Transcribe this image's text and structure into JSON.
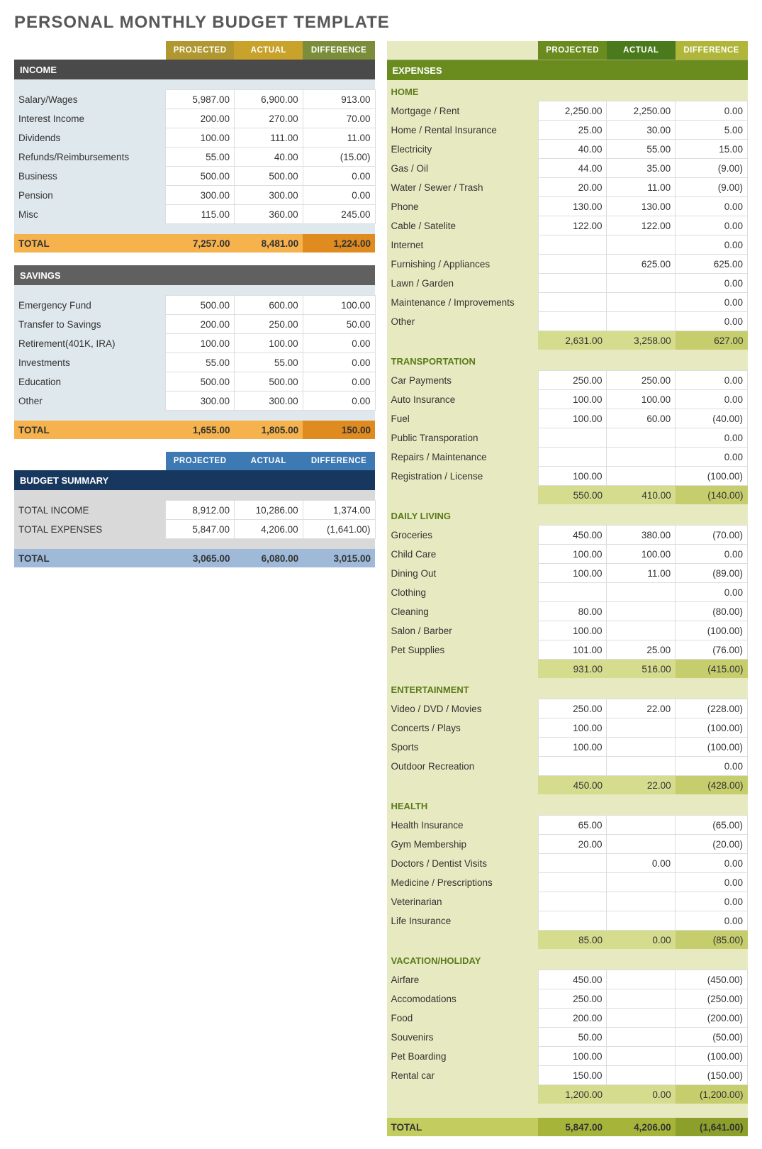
{
  "title": "PERSONAL MONTHLY BUDGET TEMPLATE",
  "cols": {
    "projected": "PROJECTED",
    "actual": "ACTUAL",
    "difference": "DIFFERENCE"
  },
  "colors": {
    "income_hdr_proj": "#b1972f",
    "income_hdr_act": "#c8a22a",
    "income_hdr_diff": "#7b8d3a",
    "income_sect": "#4a4a4a",
    "income_body": "#dfe8ec",
    "income_total_proj": "#f6b24c",
    "income_total_diff": "#e08b1f",
    "savings_sect": "#606060",
    "summary_hdr": "#3d79b3",
    "summary_sect": "#17375e",
    "summary_body": "#d9d9d9",
    "summary_total": "#9fb9d8",
    "exp_hdr_proj": "#6a8c1f",
    "exp_hdr_act": "#4b7a1d",
    "exp_hdr_diff": "#b0b63a",
    "exp_body": "#e7eac1",
    "exp_cat_text": "#5a7a1a",
    "exp_sub_proj": "#d6dc8e",
    "exp_sub_diff": "#c5cd6c",
    "exp_total_label": "#c3cc5f",
    "exp_total_proj": "#a6b53a",
    "exp_total_diff": "#8b9f2a",
    "border": "#9aa77a"
  },
  "income": {
    "label": "INCOME",
    "rows": [
      {
        "l": "Salary/Wages",
        "p": "5,987.00",
        "a": "6,900.00",
        "d": "913.00"
      },
      {
        "l": "Interest Income",
        "p": "200.00",
        "a": "270.00",
        "d": "70.00"
      },
      {
        "l": "Dividends",
        "p": "100.00",
        "a": "111.00",
        "d": "11.00"
      },
      {
        "l": "Refunds/Reimbursements",
        "p": "55.00",
        "a": "40.00",
        "d": "(15.00)"
      },
      {
        "l": "Business",
        "p": "500.00",
        "a": "500.00",
        "d": "0.00"
      },
      {
        "l": "Pension",
        "p": "300.00",
        "a": "300.00",
        "d": "0.00"
      },
      {
        "l": "Misc",
        "p": "115.00",
        "a": "360.00",
        "d": "245.00"
      }
    ],
    "total": {
      "l": "TOTAL",
      "p": "7,257.00",
      "a": "8,481.00",
      "d": "1,224.00"
    }
  },
  "savings": {
    "label": "SAVINGS",
    "rows": [
      {
        "l": "Emergency Fund",
        "p": "500.00",
        "a": "600.00",
        "d": "100.00"
      },
      {
        "l": "Transfer to Savings",
        "p": "200.00",
        "a": "250.00",
        "d": "50.00"
      },
      {
        "l": "Retirement(401K, IRA)",
        "p": "100.00",
        "a": "100.00",
        "d": "0.00"
      },
      {
        "l": "Investments",
        "p": "55.00",
        "a": "55.00",
        "d": "0.00"
      },
      {
        "l": "Education",
        "p": "500.00",
        "a": "500.00",
        "d": "0.00"
      },
      {
        "l": "Other",
        "p": "300.00",
        "a": "300.00",
        "d": "0.00"
      }
    ],
    "total": {
      "l": "TOTAL",
      "p": "1,655.00",
      "a": "1,805.00",
      "d": "150.00"
    }
  },
  "summary": {
    "label": "BUDGET SUMMARY",
    "rows": [
      {
        "l": "TOTAL INCOME",
        "p": "8,912.00",
        "a": "10,286.00",
        "d": "1,374.00"
      },
      {
        "l": "TOTAL EXPENSES",
        "p": "5,847.00",
        "a": "4,206.00",
        "d": "(1,641.00)"
      }
    ],
    "total": {
      "l": "TOTAL",
      "p": "3,065.00",
      "a": "6,080.00",
      "d": "3,015.00"
    }
  },
  "expenses": {
    "label": "EXPENSES",
    "categories": [
      {
        "name": "HOME",
        "rows": [
          {
            "l": "Mortgage / Rent",
            "p": "2,250.00",
            "a": "2,250.00",
            "d": "0.00"
          },
          {
            "l": "Home / Rental Insurance",
            "p": "25.00",
            "a": "30.00",
            "d": "5.00"
          },
          {
            "l": "Electricity",
            "p": "40.00",
            "a": "55.00",
            "d": "15.00"
          },
          {
            "l": "Gas / Oil",
            "p": "44.00",
            "a": "35.00",
            "d": "(9.00)"
          },
          {
            "l": "Water / Sewer / Trash",
            "p": "20.00",
            "a": "11.00",
            "d": "(9.00)"
          },
          {
            "l": "Phone",
            "p": "130.00",
            "a": "130.00",
            "d": "0.00"
          },
          {
            "l": "Cable / Satelite",
            "p": "122.00",
            "a": "122.00",
            "d": "0.00"
          },
          {
            "l": "Internet",
            "p": "",
            "a": "",
            "d": "0.00"
          },
          {
            "l": "Furnishing / Appliances",
            "p": "",
            "a": "625.00",
            "d": "625.00"
          },
          {
            "l": "Lawn / Garden",
            "p": "",
            "a": "",
            "d": "0.00"
          },
          {
            "l": "Maintenance / Improvements",
            "p": "",
            "a": "",
            "d": "0.00"
          },
          {
            "l": "Other",
            "p": "",
            "a": "",
            "d": "0.00"
          }
        ],
        "sub": {
          "p": "2,631.00",
          "a": "3,258.00",
          "d": "627.00"
        }
      },
      {
        "name": "TRANSPORTATION",
        "rows": [
          {
            "l": "Car Payments",
            "p": "250.00",
            "a": "250.00",
            "d": "0.00"
          },
          {
            "l": "Auto Insurance",
            "p": "100.00",
            "a": "100.00",
            "d": "0.00"
          },
          {
            "l": "Fuel",
            "p": "100.00",
            "a": "60.00",
            "d": "(40.00)"
          },
          {
            "l": "Public Transporation",
            "p": "",
            "a": "",
            "d": "0.00"
          },
          {
            "l": "Repairs / Maintenance",
            "p": "",
            "a": "",
            "d": "0.00"
          },
          {
            "l": "Registration / License",
            "p": "100.00",
            "a": "",
            "d": "(100.00)"
          }
        ],
        "sub": {
          "p": "550.00",
          "a": "410.00",
          "d": "(140.00)"
        }
      },
      {
        "name": "DAILY LIVING",
        "rows": [
          {
            "l": "Groceries",
            "p": "450.00",
            "a": "380.00",
            "d": "(70.00)"
          },
          {
            "l": "Child Care",
            "p": "100.00",
            "a": "100.00",
            "d": "0.00"
          },
          {
            "l": "Dining Out",
            "p": "100.00",
            "a": "11.00",
            "d": "(89.00)"
          },
          {
            "l": "Clothing",
            "p": "",
            "a": "",
            "d": "0.00"
          },
          {
            "l": "Cleaning",
            "p": "80.00",
            "a": "",
            "d": "(80.00)"
          },
          {
            "l": "Salon / Barber",
            "p": "100.00",
            "a": "",
            "d": "(100.00)"
          },
          {
            "l": "Pet Supplies",
            "p": "101.00",
            "a": "25.00",
            "d": "(76.00)"
          }
        ],
        "sub": {
          "p": "931.00",
          "a": "516.00",
          "d": "(415.00)"
        }
      },
      {
        "name": "ENTERTAINMENT",
        "rows": [
          {
            "l": "Video / DVD / Movies",
            "p": "250.00",
            "a": "22.00",
            "d": "(228.00)"
          },
          {
            "l": "Concerts / Plays",
            "p": "100.00",
            "a": "",
            "d": "(100.00)"
          },
          {
            "l": "Sports",
            "p": "100.00",
            "a": "",
            "d": "(100.00)"
          },
          {
            "l": "Outdoor Recreation",
            "p": "",
            "a": "",
            "d": "0.00"
          }
        ],
        "sub": {
          "p": "450.00",
          "a": "22.00",
          "d": "(428.00)"
        }
      },
      {
        "name": "HEALTH",
        "rows": [
          {
            "l": "Health Insurance",
            "p": "65.00",
            "a": "",
            "d": "(65.00)"
          },
          {
            "l": "Gym Membership",
            "p": "20.00",
            "a": "",
            "d": "(20.00)"
          },
          {
            "l": "Doctors / Dentist Visits",
            "p": "",
            "a": "0.00",
            "d": "0.00"
          },
          {
            "l": "Medicine / Prescriptions",
            "p": "",
            "a": "",
            "d": "0.00"
          },
          {
            "l": "Veterinarian",
            "p": "",
            "a": "",
            "d": "0.00"
          },
          {
            "l": "Life Insurance",
            "p": "",
            "a": "",
            "d": "0.00"
          }
        ],
        "sub": {
          "p": "85.00",
          "a": "0.00",
          "d": "(85.00)"
        }
      },
      {
        "name": "VACATION/HOLIDAY",
        "rows": [
          {
            "l": "Airfare",
            "p": "450.00",
            "a": "",
            "d": "(450.00)"
          },
          {
            "l": "Accomodations",
            "p": "250.00",
            "a": "",
            "d": "(250.00)"
          },
          {
            "l": "Food",
            "p": "200.00",
            "a": "",
            "d": "(200.00)"
          },
          {
            "l": "Souvenirs",
            "p": "50.00",
            "a": "",
            "d": "(50.00)"
          },
          {
            "l": "Pet Boarding",
            "p": "100.00",
            "a": "",
            "d": "(100.00)"
          },
          {
            "l": "Rental car",
            "p": "150.00",
            "a": "",
            "d": "(150.00)"
          }
        ],
        "sub": {
          "p": "1,200.00",
          "a": "0.00",
          "d": "(1,200.00)"
        }
      }
    ],
    "total": {
      "l": "TOTAL",
      "p": "5,847.00",
      "a": "4,206.00",
      "d": "(1,641.00)"
    }
  }
}
